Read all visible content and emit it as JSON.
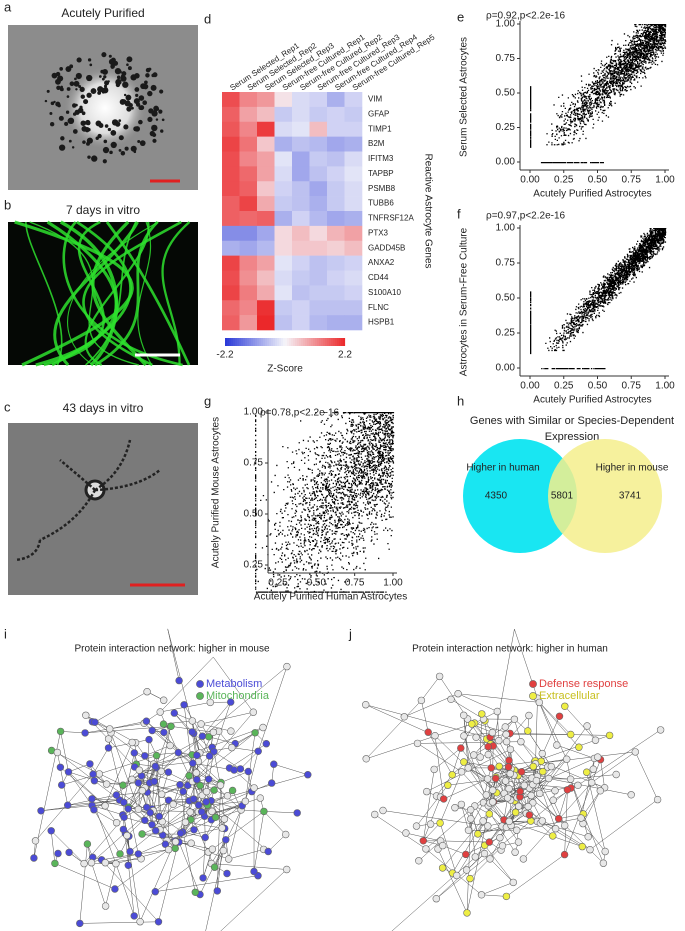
{
  "panels": {
    "a": {
      "label": "a",
      "title": "Acutely Purified"
    },
    "b": {
      "label": "b",
      "title": "7 days in vitro"
    },
    "c": {
      "label": "c",
      "title": "43 days in vitro"
    },
    "d": {
      "label": "d",
      "columns": [
        "Serum Selected_Rep1",
        "Serum Selected_Rep2",
        "Serum Selected_Rep3",
        "Serum-free Cultured_Rep1",
        "Serum-free Cultured_Rep2",
        "Serum-free Cultured_Rep3",
        "Serum-free Cultured_Rep4",
        "Serum-free Cultured_Rep5"
      ],
      "genes": [
        "VIM",
        "GFAP",
        "TIMP1",
        "B2M",
        "IFITM3",
        "TAPBP",
        "PSMB8",
        "TUBB6",
        "TNFRSF12A",
        "PTX3",
        "GADD45B",
        "ANXA2",
        "CD44",
        "S100A10",
        "FLNC",
        "HSPB1"
      ],
      "values": [
        [
          1.8,
          1.2,
          1.0,
          0.2,
          -0.3,
          -0.4,
          -0.8,
          -0.4
        ],
        [
          1.6,
          0.9,
          0.6,
          -0.5,
          -0.3,
          -0.5,
          -0.4,
          -0.5
        ],
        [
          1.7,
          1.2,
          2.0,
          -0.3,
          -0.2,
          0.6,
          -0.4,
          -0.4
        ],
        [
          1.9,
          1.4,
          0.5,
          -0.8,
          -0.6,
          -0.7,
          -0.9,
          -0.8
        ],
        [
          1.8,
          1.2,
          0.9,
          -0.2,
          -0.9,
          -0.5,
          -0.6,
          -0.3
        ],
        [
          1.8,
          1.5,
          0.9,
          -0.3,
          -0.9,
          -0.6,
          -0.4,
          -0.2
        ],
        [
          1.8,
          1.6,
          0.5,
          -0.4,
          -0.6,
          -0.9,
          -0.5,
          -0.3
        ],
        [
          1.6,
          1.9,
          0.8,
          -0.5,
          -0.6,
          -0.8,
          -0.5,
          -0.3
        ],
        [
          1.6,
          1.5,
          1.6,
          -0.8,
          -0.4,
          -0.7,
          -0.9,
          -0.8
        ],
        [
          -1.2,
          -1.2,
          -0.9,
          0.3,
          0.6,
          0.3,
          0.7,
          0.9
        ],
        [
          -0.8,
          -0.9,
          -0.7,
          0.3,
          0.5,
          0.5,
          0.4,
          0.6
        ],
        [
          1.9,
          1.2,
          0.9,
          -0.2,
          -0.4,
          -0.6,
          -0.5,
          -0.4
        ],
        [
          1.8,
          1.1,
          0.6,
          -0.3,
          -0.5,
          -0.6,
          -0.4,
          -0.3
        ],
        [
          1.9,
          1.3,
          0.8,
          -0.2,
          -0.6,
          -0.5,
          -0.5,
          -0.4
        ],
        [
          1.5,
          1.2,
          2.1,
          -0.5,
          -0.4,
          -0.6,
          -0.6,
          -0.6
        ],
        [
          1.6,
          1.0,
          2.2,
          -0.6,
          -0.4,
          -0.7,
          -0.8,
          -0.8
        ]
      ],
      "zlim": [
        -2.2,
        2.2
      ],
      "colorbar_label": "Z-Score",
      "side_label": "Reactive Astrocyte Genes"
    },
    "e": {
      "label": "e",
      "stat": "ρ=0.92,p<2.2e-16",
      "xlabel": "Acutely Purified Astrocytes",
      "ylabel": "Serum Selected Astrocytes",
      "xticks": [
        "0.00",
        "0.25",
        "0.50",
        "0.75",
        "1.00"
      ],
      "yticks": [
        "0.00",
        "0.25",
        "0.50",
        "0.75",
        "1.00"
      ]
    },
    "f": {
      "label": "f",
      "stat": "ρ=0.97,p<2.2e-16",
      "xlabel": "Acutely Purified Astrocytes",
      "ylabel": "Astrocytes in Serum-Free Culture",
      "xticks": [
        "0.00",
        "0.25",
        "0.50",
        "0.75",
        "1.00"
      ],
      "yticks": [
        "0.00",
        "0.25",
        "0.50",
        "0.75",
        "1.00"
      ]
    },
    "g": {
      "label": "g",
      "stat": "ρ=0.78,p<2.2e-16",
      "xlabel": "Acutely Purified Human Astrocytes",
      "ylabel": "Acutely Purified Mouse Astrocytes",
      "xticks": [
        "0.25",
        "0.50",
        "0.75",
        "1.00"
      ],
      "yticks": [
        "0.25",
        "0.50",
        "0.75",
        "1.00"
      ]
    },
    "h": {
      "label": "h",
      "title": [
        "Genes with Similar or Species-Dependent",
        "Expression"
      ],
      "left_label": "Higher in human",
      "right_label": "Higher in mouse",
      "counts": [
        "4350",
        "5801",
        "3741"
      ]
    },
    "i": {
      "label": "i",
      "title": "Protein interaction network: higher in mouse",
      "legend": [
        "Metabolism",
        "Mitochondria"
      ]
    },
    "j": {
      "label": "j",
      "title": "Protein interaction network: higher in human",
      "legend": [
        "Defense response",
        "Extracellular"
      ]
    }
  }
}
